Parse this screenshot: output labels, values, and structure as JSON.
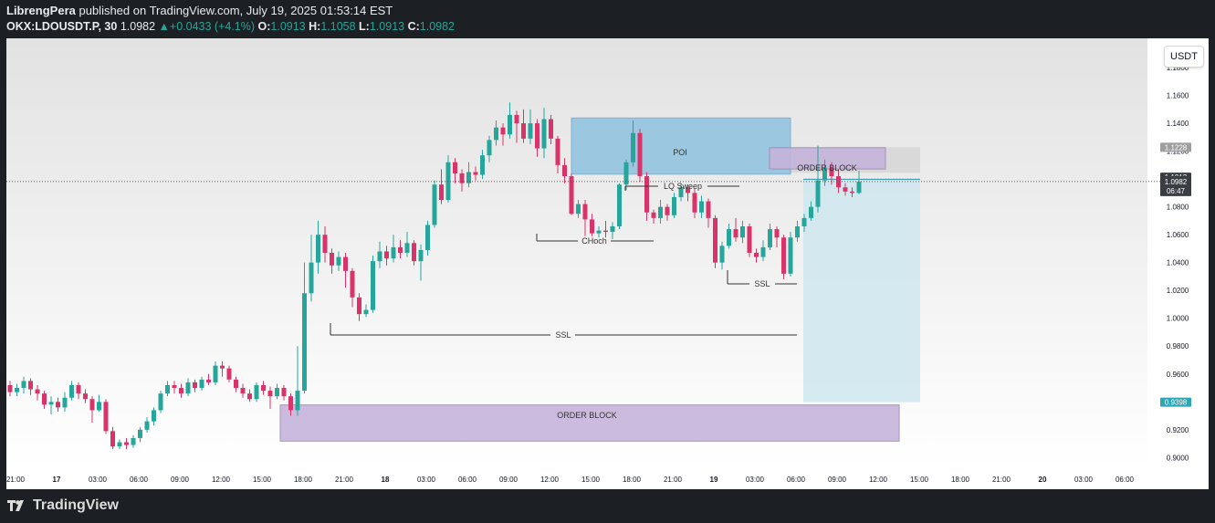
{
  "header": {
    "publisher": "LibrengPera",
    "published_text": "published on TradingView.com, July 19, 2025 01:53:14 EST",
    "symbol": "OKX:LDOUSDT.P, 30",
    "last": "1.0982",
    "change_arrow": "▲",
    "change": "+0.0433 (+4.1%)",
    "o_label": "O:",
    "o": "1.0913",
    "h_label": "H:",
    "h": "1.1058",
    "l_label": "L:",
    "l": "1.0913",
    "c_label": "C:",
    "c": "1.0982"
  },
  "currency_button": "USDT",
  "footer": {
    "brand": "TradingView",
    "logo_icon": "tradingview-logo-icon"
  },
  "colors": {
    "up": "#26a69a",
    "down": "#d9346a",
    "poi": "#8ec2df",
    "order_block": "#c6b4db"
  },
  "price_labels": {
    "top_box": "1.1228",
    "level": "1.1013",
    "last": "1.0982",
    "countdown": "06:47",
    "target": "0.9398"
  },
  "chart_data": {
    "type": "candlestick",
    "y_ticks": [
      "1.1800",
      "1.1600",
      "1.1400",
      "1.1200",
      "1.1000",
      "1.0800",
      "1.0600",
      "1.0400",
      "1.0200",
      "1.0000",
      "0.9800",
      "0.9600",
      "0.9400",
      "0.9200",
      "0.9000"
    ],
    "ylim": [
      0.893,
      1.201
    ],
    "x_ticks": [
      "21:00",
      "17",
      "03:00",
      "06:00",
      "09:00",
      "12:00",
      "15:00",
      "18:00",
      "21:00",
      "18",
      "03:00",
      "06:00",
      "09:00",
      "12:00",
      "15:00",
      "18:00",
      "21:00",
      "19",
      "03:00",
      "06:00",
      "09:00",
      "12:00",
      "15:00",
      "18:00",
      "21:00",
      "20",
      "03:00",
      "06:00"
    ],
    "bold_x_ticks": [
      "17",
      "18",
      "19",
      "20"
    ],
    "candles": [
      [
        0.952,
        0.947,
        0.955,
        0.944
      ],
      [
        0.947,
        0.95,
        0.953,
        0.944
      ],
      [
        0.95,
        0.955,
        0.958,
        0.946
      ],
      [
        0.955,
        0.949,
        0.957,
        0.945
      ],
      [
        0.949,
        0.946,
        0.952,
        0.941
      ],
      [
        0.946,
        0.938,
        0.948,
        0.935
      ],
      [
        0.938,
        0.94,
        0.944,
        0.931
      ],
      [
        0.94,
        0.936,
        0.943,
        0.933
      ],
      [
        0.936,
        0.943,
        0.947,
        0.933
      ],
      [
        0.943,
        0.952,
        0.955,
        0.941
      ],
      [
        0.952,
        0.946,
        0.954,
        0.942
      ],
      [
        0.946,
        0.942,
        0.949,
        0.939
      ],
      [
        0.942,
        0.934,
        0.944,
        0.925
      ],
      [
        0.934,
        0.94,
        0.945,
        0.933
      ],
      [
        0.94,
        0.919,
        0.942,
        0.917
      ],
      [
        0.919,
        0.908,
        0.922,
        0.906
      ],
      [
        0.908,
        0.911,
        0.913,
        0.906
      ],
      [
        0.911,
        0.909,
        0.914,
        0.906
      ],
      [
        0.909,
        0.914,
        0.916,
        0.907
      ],
      [
        0.914,
        0.92,
        0.922,
        0.911
      ],
      [
        0.92,
        0.926,
        0.929,
        0.918
      ],
      [
        0.926,
        0.934,
        0.936,
        0.923
      ],
      [
        0.934,
        0.946,
        0.948,
        0.932
      ],
      [
        0.946,
        0.952,
        0.955,
        0.944
      ],
      [
        0.952,
        0.95,
        0.955,
        0.946
      ],
      [
        0.95,
        0.946,
        0.953,
        0.943
      ],
      [
        0.946,
        0.954,
        0.957,
        0.944
      ],
      [
        0.954,
        0.95,
        0.956,
        0.947
      ],
      [
        0.95,
        0.956,
        0.958,
        0.948
      ],
      [
        0.956,
        0.954,
        0.96,
        0.952
      ],
      [
        0.954,
        0.966,
        0.969,
        0.952
      ],
      [
        0.966,
        0.964,
        0.969,
        0.958
      ],
      [
        0.964,
        0.956,
        0.966,
        0.954
      ],
      [
        0.956,
        0.95,
        0.958,
        0.947
      ],
      [
        0.95,
        0.946,
        0.953,
        0.943
      ],
      [
        0.946,
        0.942,
        0.949,
        0.94
      ],
      [
        0.942,
        0.952,
        0.954,
        0.94
      ],
      [
        0.952,
        0.948,
        0.955,
        0.945
      ],
      [
        0.948,
        0.944,
        0.951,
        0.935
      ],
      [
        0.944,
        0.95,
        0.953,
        0.942
      ],
      [
        0.95,
        0.944,
        0.952,
        0.941
      ],
      [
        0.944,
        0.934,
        0.946,
        0.93
      ],
      [
        0.934,
        0.948,
        0.98,
        0.93
      ],
      [
        0.948,
        1.018,
        1.04,
        0.946
      ],
      [
        1.018,
        1.04,
        1.06,
        1.012
      ],
      [
        1.04,
        1.06,
        1.07,
        1.032
      ],
      [
        1.06,
        1.047,
        1.066,
        1.04
      ],
      [
        1.047,
        1.038,
        1.05,
        1.032
      ],
      [
        1.038,
        1.044,
        1.048,
        1.034
      ],
      [
        1.044,
        1.034,
        1.047,
        1.022
      ],
      [
        1.034,
        1.015,
        1.036,
        1.008
      ],
      [
        1.015,
        1.003,
        1.018,
        0.998
      ],
      [
        1.003,
        1.006,
        1.01,
        1.001
      ],
      [
        1.006,
        1.041,
        1.045,
        1.004
      ],
      [
        1.041,
        1.048,
        1.055,
        1.036
      ],
      [
        1.048,
        1.043,
        1.052,
        1.038
      ],
      [
        1.043,
        1.051,
        1.06,
        1.04
      ],
      [
        1.051,
        1.047,
        1.056,
        1.043
      ],
      [
        1.047,
        1.054,
        1.062,
        1.044
      ],
      [
        1.054,
        1.041,
        1.056,
        1.038
      ],
      [
        1.041,
        1.049,
        1.053,
        1.027
      ],
      [
        1.049,
        1.067,
        1.07,
        1.045
      ],
      [
        1.067,
        1.096,
        1.099,
        1.065
      ],
      [
        1.096,
        1.085,
        1.107,
        1.082
      ],
      [
        1.085,
        1.112,
        1.117,
        1.083
      ],
      [
        1.112,
        1.104,
        1.115,
        1.097
      ],
      [
        1.104,
        1.097,
        1.107,
        1.091
      ],
      [
        1.097,
        1.105,
        1.112,
        1.094
      ],
      [
        1.105,
        1.103,
        1.109,
        1.099
      ],
      [
        1.103,
        1.117,
        1.121,
        1.1
      ],
      [
        1.117,
        1.128,
        1.131,
        1.112
      ],
      [
        1.128,
        1.137,
        1.142,
        1.124
      ],
      [
        1.137,
        1.132,
        1.14,
        1.124
      ],
      [
        1.132,
        1.146,
        1.155,
        1.129
      ],
      [
        1.146,
        1.14,
        1.149,
        1.126
      ],
      [
        1.14,
        1.129,
        1.15,
        1.126
      ],
      [
        1.129,
        1.14,
        1.15,
        1.125
      ],
      [
        1.14,
        1.122,
        1.143,
        1.116
      ],
      [
        1.122,
        1.143,
        1.151,
        1.115
      ],
      [
        1.143,
        1.129,
        1.146,
        1.125
      ],
      [
        1.129,
        1.11,
        1.131,
        1.104
      ],
      [
        1.11,
        1.102,
        1.115,
        1.097
      ],
      [
        1.102,
        1.075,
        1.104,
        1.074
      ],
      [
        1.075,
        1.082,
        1.085,
        1.072
      ],
      [
        1.082,
        1.071,
        1.085,
        1.059
      ],
      [
        1.071,
        1.061,
        1.075,
        1.059
      ],
      [
        1.061,
        1.063,
        1.066,
        1.058
      ],
      [
        1.063,
        1.062,
        1.07,
        1.058
      ],
      [
        1.062,
        1.066,
        1.069,
        1.057
      ],
      [
        1.066,
        1.096,
        1.097,
        1.064
      ],
      [
        1.096,
        1.112,
        1.114,
        1.092
      ],
      [
        1.112,
        1.133,
        1.142,
        1.109
      ],
      [
        1.133,
        1.102,
        1.136,
        1.098
      ],
      [
        1.102,
        1.076,
        1.105,
        1.07
      ],
      [
        1.076,
        1.072,
        1.078,
        1.068
      ],
      [
        1.072,
        1.08,
        1.085,
        1.068
      ],
      [
        1.08,
        1.074,
        1.082,
        1.07
      ],
      [
        1.074,
        1.087,
        1.09,
        1.072
      ],
      [
        1.087,
        1.094,
        1.097,
        1.084
      ],
      [
        1.094,
        1.09,
        1.096,
        1.084
      ],
      [
        1.09,
        1.076,
        1.093,
        1.072
      ],
      [
        1.076,
        1.084,
        1.088,
        1.072
      ],
      [
        1.084,
        1.072,
        1.086,
        1.065
      ],
      [
        1.072,
        1.04,
        1.074,
        1.036
      ],
      [
        1.04,
        1.052,
        1.055,
        1.035
      ],
      [
        1.052,
        1.064,
        1.068,
        1.05
      ],
      [
        1.064,
        1.058,
        1.072,
        1.055
      ],
      [
        1.058,
        1.066,
        1.07,
        1.054
      ],
      [
        1.066,
        1.047,
        1.068,
        1.044
      ],
      [
        1.047,
        1.044,
        1.05,
        1.04
      ],
      [
        1.044,
        1.051,
        1.056,
        1.041
      ],
      [
        1.051,
        1.064,
        1.068,
        1.049
      ],
      [
        1.064,
        1.058,
        1.066,
        1.051
      ],
      [
        1.058,
        1.032,
        1.06,
        1.028
      ],
      [
        1.032,
        1.058,
        1.062,
        1.03
      ],
      [
        1.058,
        1.066,
        1.07,
        1.055
      ],
      [
        1.066,
        1.072,
        1.075,
        1.062
      ],
      [
        1.072,
        1.08,
        1.084,
        1.07
      ],
      [
        1.08,
        1.099,
        1.124,
        1.076
      ],
      [
        1.099,
        1.108,
        1.114,
        1.095
      ],
      [
        1.108,
        1.102,
        1.112,
        1.096
      ],
      [
        1.102,
        1.094,
        1.107,
        1.09
      ],
      [
        1.094,
        1.091,
        1.097,
        1.088
      ],
      [
        1.091,
        1.09,
        1.094,
        1.087
      ],
      [
        1.09,
        1.098,
        1.106,
        1.089
      ]
    ]
  },
  "annotations": {
    "poi": "POI",
    "order_block_top": "ORDER BLOCK",
    "order_block_bottom": "ORDER BLOCK",
    "lq_sweep": "LQ Sweep",
    "choch": "CHoch",
    "ssl_right": "SSL",
    "ssl_left": "SSL"
  }
}
